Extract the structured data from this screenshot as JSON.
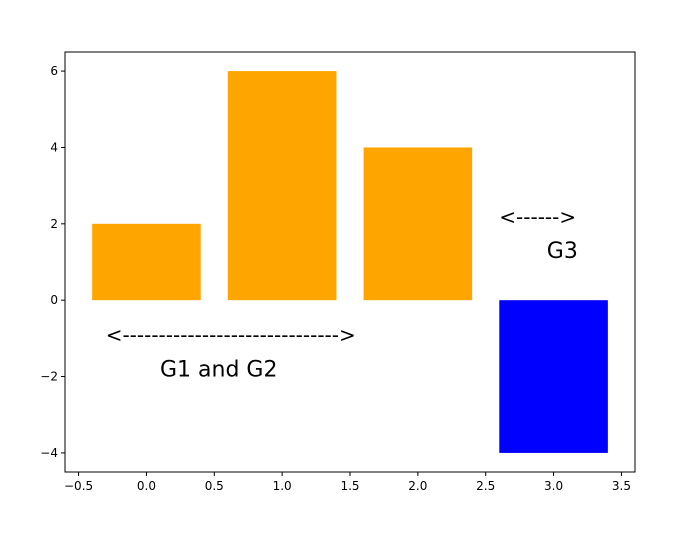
{
  "chart_data": {
    "type": "bar",
    "x": [
      0,
      1,
      2,
      3
    ],
    "values": [
      2,
      6,
      4,
      -4
    ],
    "colors": [
      "#ffa500",
      "#ffa500",
      "#ffa500",
      "#0000ff"
    ],
    "bar_width": 0.8,
    "title": "",
    "xlabel": "",
    "ylabel": "",
    "xlim": [
      -0.6,
      3.6
    ],
    "ylim": [
      -4.5,
      6.5
    ],
    "xticks": [
      -0.5,
      0.0,
      0.5,
      1.0,
      1.5,
      2.0,
      2.5,
      3.0,
      3.5
    ],
    "xtick_labels": [
      "−0.5",
      "0.0",
      "0.5",
      "1.0",
      "1.5",
      "2.0",
      "2.5",
      "3.0",
      "3.5"
    ],
    "yticks": [
      -4,
      -2,
      0,
      2,
      4,
      6
    ],
    "ytick_labels": [
      "−4",
      "−2",
      "0",
      "2",
      "4",
      "6"
    ],
    "grid": false,
    "annotations": [
      {
        "kind": "arrow",
        "text": "<------------------------------>",
        "x": -0.3,
        "y": -1.1
      },
      {
        "kind": "label",
        "text": "G1 and G2",
        "x": 0.1,
        "y": -2.0
      },
      {
        "kind": "arrow",
        "text": "<------>",
        "x": 2.6,
        "y": 2.0
      },
      {
        "kind": "label",
        "text": "G3",
        "x": 2.95,
        "y": 1.1
      }
    ]
  }
}
